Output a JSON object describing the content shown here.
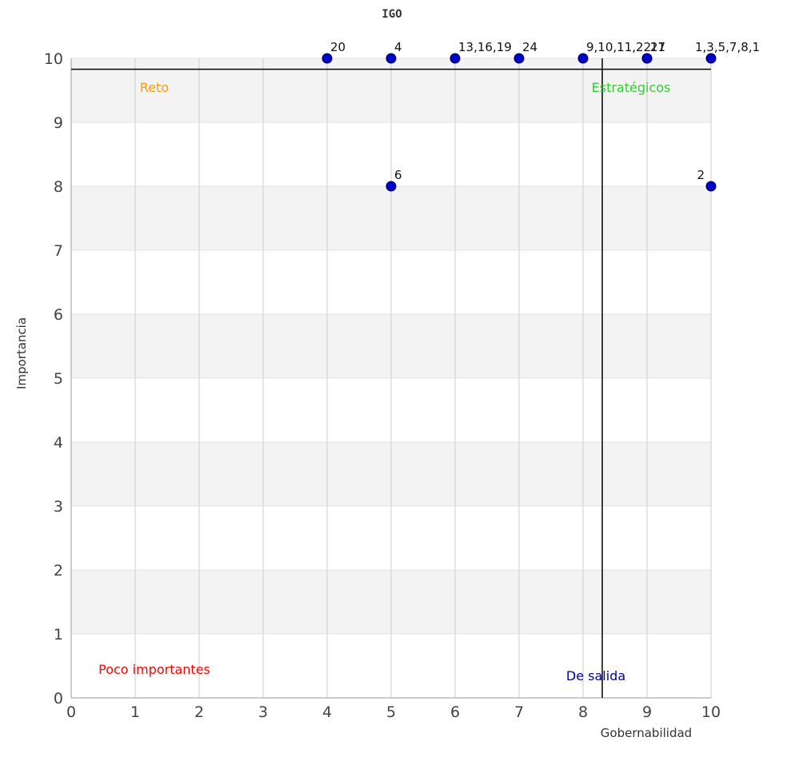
{
  "chart_data": {
    "type": "scatter",
    "title": "IGO",
    "xlabel": "Gobernabilidad",
    "ylabel": "Importancia",
    "xlim": [
      0,
      10
    ],
    "ylim": [
      0,
      10
    ],
    "xticks": [
      0,
      1,
      2,
      3,
      4,
      5,
      6,
      7,
      8,
      9,
      10
    ],
    "yticks": [
      0,
      1,
      2,
      3,
      4,
      5,
      6,
      7,
      8,
      9,
      10
    ],
    "grid": true,
    "points": [
      {
        "x": 4,
        "y": 10,
        "label": "20"
      },
      {
        "x": 5,
        "y": 10,
        "label": "4"
      },
      {
        "x": 6,
        "y": 10,
        "label": "13,16,19"
      },
      {
        "x": 7,
        "y": 10,
        "label": "24"
      },
      {
        "x": 8,
        "y": 10,
        "label": "9,10,11,22"
      },
      {
        "x": 9,
        "y": 10,
        "label": "17"
      },
      {
        "x": 9,
        "y": 10,
        "label": "21"
      },
      {
        "x": 10,
        "y": 10,
        "label": "1,3,5,7,8,1"
      },
      {
        "x": 5,
        "y": 8,
        "label": "6"
      },
      {
        "x": 10,
        "y": 8,
        "label": "2"
      }
    ],
    "reference_lines": {
      "vertical_x": 8.3,
      "horizontal_y": 9.83
    },
    "quadrants": [
      {
        "label": "Reto",
        "color": "#ff9900",
        "x": 1.3,
        "y": 9.55
      },
      {
        "label": "Estratégicos",
        "color": "#33cc33",
        "x": 8.75,
        "y": 9.55
      },
      {
        "label": "Poco importantes",
        "color": "#ff0000",
        "x": 1.3,
        "y": 0.45
      },
      {
        "label": "De salida",
        "color": "#000099",
        "x": 8.2,
        "y": 0.35
      }
    ],
    "colors": {
      "point_fill": "#0000cc",
      "point_stroke": "#000055",
      "band": "#f3f3f3",
      "grid": "#cccccc"
    }
  }
}
